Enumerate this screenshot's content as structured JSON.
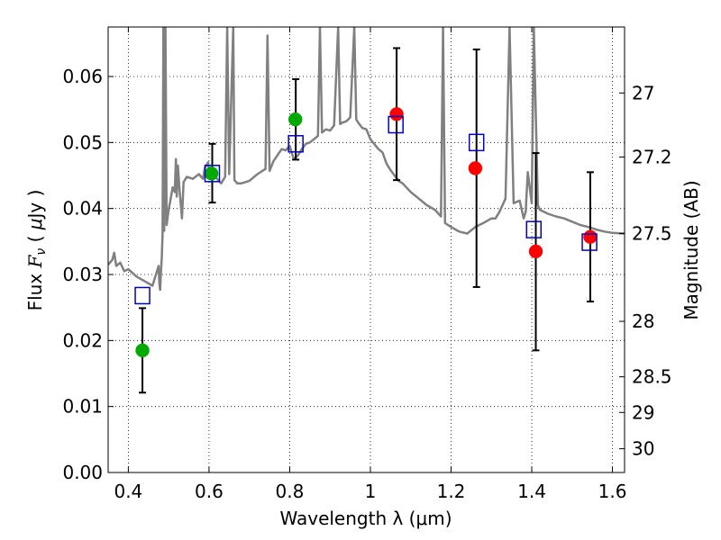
{
  "chart_data": {
    "type": "scatter",
    "xlabel": "Wavelength  λ (μm)",
    "ylabel_parts": [
      "Flux  ",
      "F",
      "ν",
      "  (  ",
      "μ",
      "Jy  )"
    ],
    "ylabel_right": "Magnitude (AB)",
    "xlim": [
      0.35,
      1.63
    ],
    "ylim": [
      0.0,
      0.0675
    ],
    "grid": true,
    "x_ticks": [
      0.4,
      0.6,
      0.8,
      1.0,
      1.2,
      1.4,
      1.6
    ],
    "x_tick_labels": [
      "0.4",
      "0.6",
      "0.8",
      "1",
      "1.2",
      "1.4",
      "1.6"
    ],
    "y_ticks": [
      0.0,
      0.01,
      0.02,
      0.03,
      0.04,
      0.05,
      0.06
    ],
    "y_tick_labels": [
      "0.00",
      "0.01",
      "0.02",
      "0.03",
      "0.04",
      "0.05",
      "0.06"
    ],
    "right_ticks": [
      {
        "label": "27",
        "flux": 0.0575
      },
      {
        "label": "27.2",
        "flux": 0.0478
      },
      {
        "label": "27.5",
        "flux": 0.0362
      },
      {
        "label": "28",
        "flux": 0.0229
      },
      {
        "label": "28.5",
        "flux": 0.0145
      },
      {
        "label": "29",
        "flux": 0.0091
      },
      {
        "label": "30",
        "flux": 0.0036
      }
    ],
    "colors": {
      "spectrum": "#808080",
      "green": "#00aa00",
      "red": "#ff0000",
      "blue": "#0000cc",
      "errorbar": "#000000"
    },
    "series": [
      {
        "marker": "circle",
        "color": "#00aa00",
        "points": [
          {
            "x": 0.435,
            "y": 0.0185
          },
          {
            "x": 0.606,
            "y": 0.0453
          },
          {
            "x": 0.814,
            "y": 0.0535
          }
        ]
      },
      {
        "marker": "circle",
        "color": "#ff0000",
        "points": [
          {
            "x": 1.065,
            "y": 0.0543
          },
          {
            "x": 1.26,
            "y": 0.0461
          },
          {
            "x": 1.41,
            "y": 0.0335
          },
          {
            "x": 1.545,
            "y": 0.0357
          }
        ]
      },
      {
        "marker": "open-square",
        "color": "#0000cc",
        "points": [
          {
            "x": 0.435,
            "y": 0.0268
          },
          {
            "x": 0.608,
            "y": 0.0453
          },
          {
            "x": 0.815,
            "y": 0.0498
          },
          {
            "x": 1.063,
            "y": 0.0527
          },
          {
            "x": 1.263,
            "y": 0.05
          },
          {
            "x": 1.405,
            "y": 0.0368
          },
          {
            "x": 1.543,
            "y": 0.0349
          }
        ]
      }
    ],
    "error_bars": [
      {
        "x": 0.435,
        "low": 0.0121,
        "high": 0.0249
      },
      {
        "x": 0.608,
        "low": 0.0409,
        "high": 0.0498
      },
      {
        "x": 0.815,
        "low": 0.0474,
        "high": 0.0596
      },
      {
        "x": 1.065,
        "low": 0.0443,
        "high": 0.0643
      },
      {
        "x": 1.263,
        "low": 0.0281,
        "high": 0.0641
      },
      {
        "x": 1.41,
        "low": 0.0185,
        "high": 0.0484
      },
      {
        "x": 1.545,
        "low": 0.0259,
        "high": 0.0455
      }
    ],
    "spectrum": [
      [
        0.35,
        0.0315
      ],
      [
        0.36,
        0.0322
      ],
      [
        0.365,
        0.0333
      ],
      [
        0.37,
        0.0313
      ],
      [
        0.38,
        0.0318
      ],
      [
        0.39,
        0.0305
      ],
      [
        0.4,
        0.0308
      ],
      [
        0.42,
        0.0297
      ],
      [
        0.44,
        0.029
      ],
      [
        0.46,
        0.0283
      ],
      [
        0.475,
        0.0313
      ],
      [
        0.477,
        0.0285
      ],
      [
        0.479,
        0.0277
      ],
      [
        0.481,
        0.0305
      ],
      [
        0.483,
        0.0325
      ],
      [
        0.485,
        0.0362
      ],
      [
        0.487,
        0.0675
      ],
      [
        0.489,
        0.0366
      ],
      [
        0.492,
        0.0675
      ],
      [
        0.495,
        0.0375
      ],
      [
        0.5,
        0.0398
      ],
      [
        0.505,
        0.0415
      ],
      [
        0.51,
        0.0432
      ],
      [
        0.515,
        0.0425
      ],
      [
        0.518,
        0.0475
      ],
      [
        0.52,
        0.0418
      ],
      [
        0.523,
        0.0465
      ],
      [
        0.527,
        0.0428
      ],
      [
        0.533,
        0.0385
      ],
      [
        0.537,
        0.044
      ],
      [
        0.545,
        0.0448
      ],
      [
        0.56,
        0.0445
      ],
      [
        0.575,
        0.0452
      ],
      [
        0.585,
        0.0445
      ],
      [
        0.59,
        0.0462
      ],
      [
        0.598,
        0.047
      ],
      [
        0.6,
        0.0455
      ],
      [
        0.61,
        0.0453
      ],
      [
        0.62,
        0.0445
      ],
      [
        0.63,
        0.0438
      ],
      [
        0.64,
        0.0448
      ],
      [
        0.645,
        0.0675
      ],
      [
        0.65,
        0.0452
      ],
      [
        0.66,
        0.0675
      ],
      [
        0.663,
        0.0443
      ],
      [
        0.67,
        0.0438
      ],
      [
        0.68,
        0.0438
      ],
      [
        0.7,
        0.0442
      ],
      [
        0.72,
        0.0452
      ],
      [
        0.74,
        0.046
      ],
      [
        0.745,
        0.0662
      ],
      [
        0.75,
        0.0457
      ],
      [
        0.76,
        0.0472
      ],
      [
        0.78,
        0.049
      ],
      [
        0.79,
        0.0488
      ],
      [
        0.8,
        0.0495
      ],
      [
        0.81,
        0.0475
      ],
      [
        0.82,
        0.048
      ],
      [
        0.83,
        0.049
      ],
      [
        0.84,
        0.0498
      ],
      [
        0.85,
        0.05
      ],
      [
        0.86,
        0.0505
      ],
      [
        0.87,
        0.051
      ],
      [
        0.875,
        0.0675
      ],
      [
        0.88,
        0.0515
      ],
      [
        0.89,
        0.052
      ],
      [
        0.9,
        0.0518
      ],
      [
        0.91,
        0.0526
      ],
      [
        0.92,
        0.0675
      ],
      [
        0.925,
        0.0528
      ],
      [
        0.93,
        0.053
      ],
      [
        0.94,
        0.0532
      ],
      [
        0.95,
        0.0538
      ],
      [
        0.96,
        0.0675
      ],
      [
        0.965,
        0.0535
      ],
      [
        0.97,
        0.053
      ],
      [
        0.98,
        0.0522
      ],
      [
        0.99,
        0.052
      ],
      [
        1.0,
        0.0505
      ],
      [
        1.02,
        0.049
      ],
      [
        1.03,
        0.0485
      ],
      [
        1.04,
        0.0468
      ],
      [
        1.05,
        0.0458
      ],
      [
        1.06,
        0.045
      ],
      [
        1.07,
        0.0442
      ],
      [
        1.08,
        0.0438
      ],
      [
        1.1,
        0.0425
      ],
      [
        1.12,
        0.0415
      ],
      [
        1.14,
        0.0405
      ],
      [
        1.16,
        0.0398
      ],
      [
        1.175,
        0.0388
      ],
      [
        1.18,
        0.0675
      ],
      [
        1.185,
        0.0378
      ],
      [
        1.2,
        0.0372
      ],
      [
        1.22,
        0.0365
      ],
      [
        1.24,
        0.0362
      ],
      [
        1.26,
        0.0372
      ],
      [
        1.28,
        0.0378
      ],
      [
        1.3,
        0.0385
      ],
      [
        1.31,
        0.0385
      ],
      [
        1.32,
        0.0395
      ],
      [
        1.335,
        0.0415
      ],
      [
        1.345,
        0.0675
      ],
      [
        1.355,
        0.0408
      ],
      [
        1.37,
        0.0412
      ],
      [
        1.38,
        0.0385
      ],
      [
        1.385,
        0.0395
      ],
      [
        1.39,
        0.0455
      ],
      [
        1.4,
        0.0408
      ],
      [
        1.405,
        0.0675
      ],
      [
        1.415,
        0.0405
      ],
      [
        1.42,
        0.0398
      ],
      [
        1.44,
        0.0392
      ],
      [
        1.46,
        0.0388
      ],
      [
        1.48,
        0.0385
      ],
      [
        1.5,
        0.038
      ],
      [
        1.52,
        0.0375
      ],
      [
        1.54,
        0.0372
      ],
      [
        1.56,
        0.0368
      ],
      [
        1.58,
        0.0365
      ],
      [
        1.6,
        0.0363
      ],
      [
        1.63,
        0.0362
      ]
    ]
  }
}
